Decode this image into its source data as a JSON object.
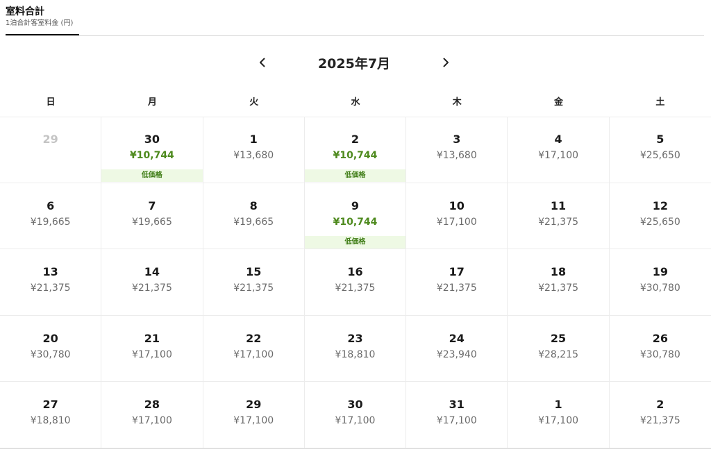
{
  "tab": {
    "title": "室料合計",
    "subtitle": "1泊合計客室料金 (円)"
  },
  "calendar": {
    "month_title": "2025年7月",
    "weekdays": [
      "日",
      "月",
      "火",
      "水",
      "木",
      "金",
      "土"
    ],
    "low_price_badge": "低価格",
    "weeks": [
      [
        {
          "day": "29",
          "price": "",
          "muted": true,
          "low": false
        },
        {
          "day": "30",
          "price": "¥10,744",
          "muted": false,
          "low": true
        },
        {
          "day": "1",
          "price": "¥13,680",
          "muted": false,
          "low": false
        },
        {
          "day": "2",
          "price": "¥10,744",
          "muted": false,
          "low": true
        },
        {
          "day": "3",
          "price": "¥13,680",
          "muted": false,
          "low": false
        },
        {
          "day": "4",
          "price": "¥17,100",
          "muted": false,
          "low": false
        },
        {
          "day": "5",
          "price": "¥25,650",
          "muted": false,
          "low": false
        }
      ],
      [
        {
          "day": "6",
          "price": "¥19,665",
          "muted": false,
          "low": false
        },
        {
          "day": "7",
          "price": "¥19,665",
          "muted": false,
          "low": false
        },
        {
          "day": "8",
          "price": "¥19,665",
          "muted": false,
          "low": false
        },
        {
          "day": "9",
          "price": "¥10,744",
          "muted": false,
          "low": true
        },
        {
          "day": "10",
          "price": "¥17,100",
          "muted": false,
          "low": false
        },
        {
          "day": "11",
          "price": "¥21,375",
          "muted": false,
          "low": false
        },
        {
          "day": "12",
          "price": "¥25,650",
          "muted": false,
          "low": false
        }
      ],
      [
        {
          "day": "13",
          "price": "¥21,375",
          "muted": false,
          "low": false
        },
        {
          "day": "14",
          "price": "¥21,375",
          "muted": false,
          "low": false
        },
        {
          "day": "15",
          "price": "¥21,375",
          "muted": false,
          "low": false
        },
        {
          "day": "16",
          "price": "¥21,375",
          "muted": false,
          "low": false
        },
        {
          "day": "17",
          "price": "¥21,375",
          "muted": false,
          "low": false
        },
        {
          "day": "18",
          "price": "¥21,375",
          "muted": false,
          "low": false
        },
        {
          "day": "19",
          "price": "¥30,780",
          "muted": false,
          "low": false
        }
      ],
      [
        {
          "day": "20",
          "price": "¥30,780",
          "muted": false,
          "low": false
        },
        {
          "day": "21",
          "price": "¥17,100",
          "muted": false,
          "low": false
        },
        {
          "day": "22",
          "price": "¥17,100",
          "muted": false,
          "low": false
        },
        {
          "day": "23",
          "price": "¥18,810",
          "muted": false,
          "low": false
        },
        {
          "day": "24",
          "price": "¥23,940",
          "muted": false,
          "low": false
        },
        {
          "day": "25",
          "price": "¥28,215",
          "muted": false,
          "low": false
        },
        {
          "day": "26",
          "price": "¥30,780",
          "muted": false,
          "low": false
        }
      ],
      [
        {
          "day": "27",
          "price": "¥18,810",
          "muted": false,
          "low": false
        },
        {
          "day": "28",
          "price": "¥17,100",
          "muted": false,
          "low": false
        },
        {
          "day": "29",
          "price": "¥17,100",
          "muted": false,
          "low": false
        },
        {
          "day": "30",
          "price": "¥17,100",
          "muted": false,
          "low": false
        },
        {
          "day": "31",
          "price": "¥17,100",
          "muted": false,
          "low": false
        },
        {
          "day": "1",
          "price": "¥17,100",
          "muted": false,
          "low": false
        },
        {
          "day": "2",
          "price": "¥21,375",
          "muted": false,
          "low": false
        }
      ]
    ]
  },
  "colors": {
    "low_price_text": "#4e8a1e",
    "low_price_badge_bg": "#eef9e4",
    "price_text": "#6b6b6b",
    "muted_day": "#c4c4c4"
  },
  "icons": {
    "prev": "chevron-left-icon",
    "next": "chevron-right-icon"
  }
}
